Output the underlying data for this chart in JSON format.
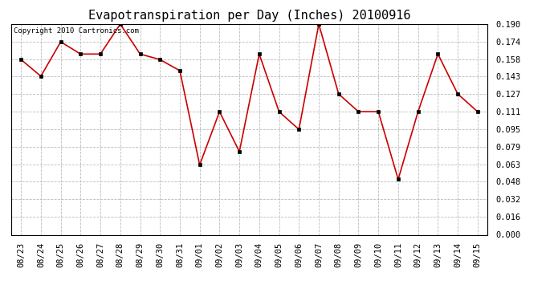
{
  "title": "Evapotranspiration per Day (Inches) 20100916",
  "copyright_text": "Copyright 2010 Cartronics.com",
  "x_labels": [
    "08/23",
    "08/24",
    "08/25",
    "08/26",
    "08/27",
    "08/28",
    "08/29",
    "08/30",
    "08/31",
    "09/01",
    "09/02",
    "09/03",
    "09/04",
    "09/05",
    "09/06",
    "09/07",
    "09/08",
    "09/09",
    "09/10",
    "09/11",
    "09/12",
    "09/13",
    "09/14",
    "09/15"
  ],
  "y_values": [
    0.158,
    0.143,
    0.174,
    0.163,
    0.163,
    0.19,
    0.163,
    0.158,
    0.148,
    0.063,
    0.111,
    0.075,
    0.163,
    0.111,
    0.095,
    0.19,
    0.127,
    0.111,
    0.111,
    0.05,
    0.111,
    0.163,
    0.127,
    0.111
  ],
  "y_ticks": [
    0.0,
    0.016,
    0.032,
    0.048,
    0.063,
    0.079,
    0.095,
    0.111,
    0.127,
    0.143,
    0.158,
    0.174,
    0.19
  ],
  "y_min": 0.0,
  "y_max": 0.19,
  "line_color": "#cc0000",
  "marker": "s",
  "marker_color": "black",
  "marker_size": 2.5,
  "background_color": "#ffffff",
  "grid_color": "#bbbbbb",
  "title_fontsize": 11,
  "copyright_fontsize": 6.5,
  "tick_fontsize": 7.5,
  "fig_width": 6.9,
  "fig_height": 3.75,
  "dpi": 100
}
